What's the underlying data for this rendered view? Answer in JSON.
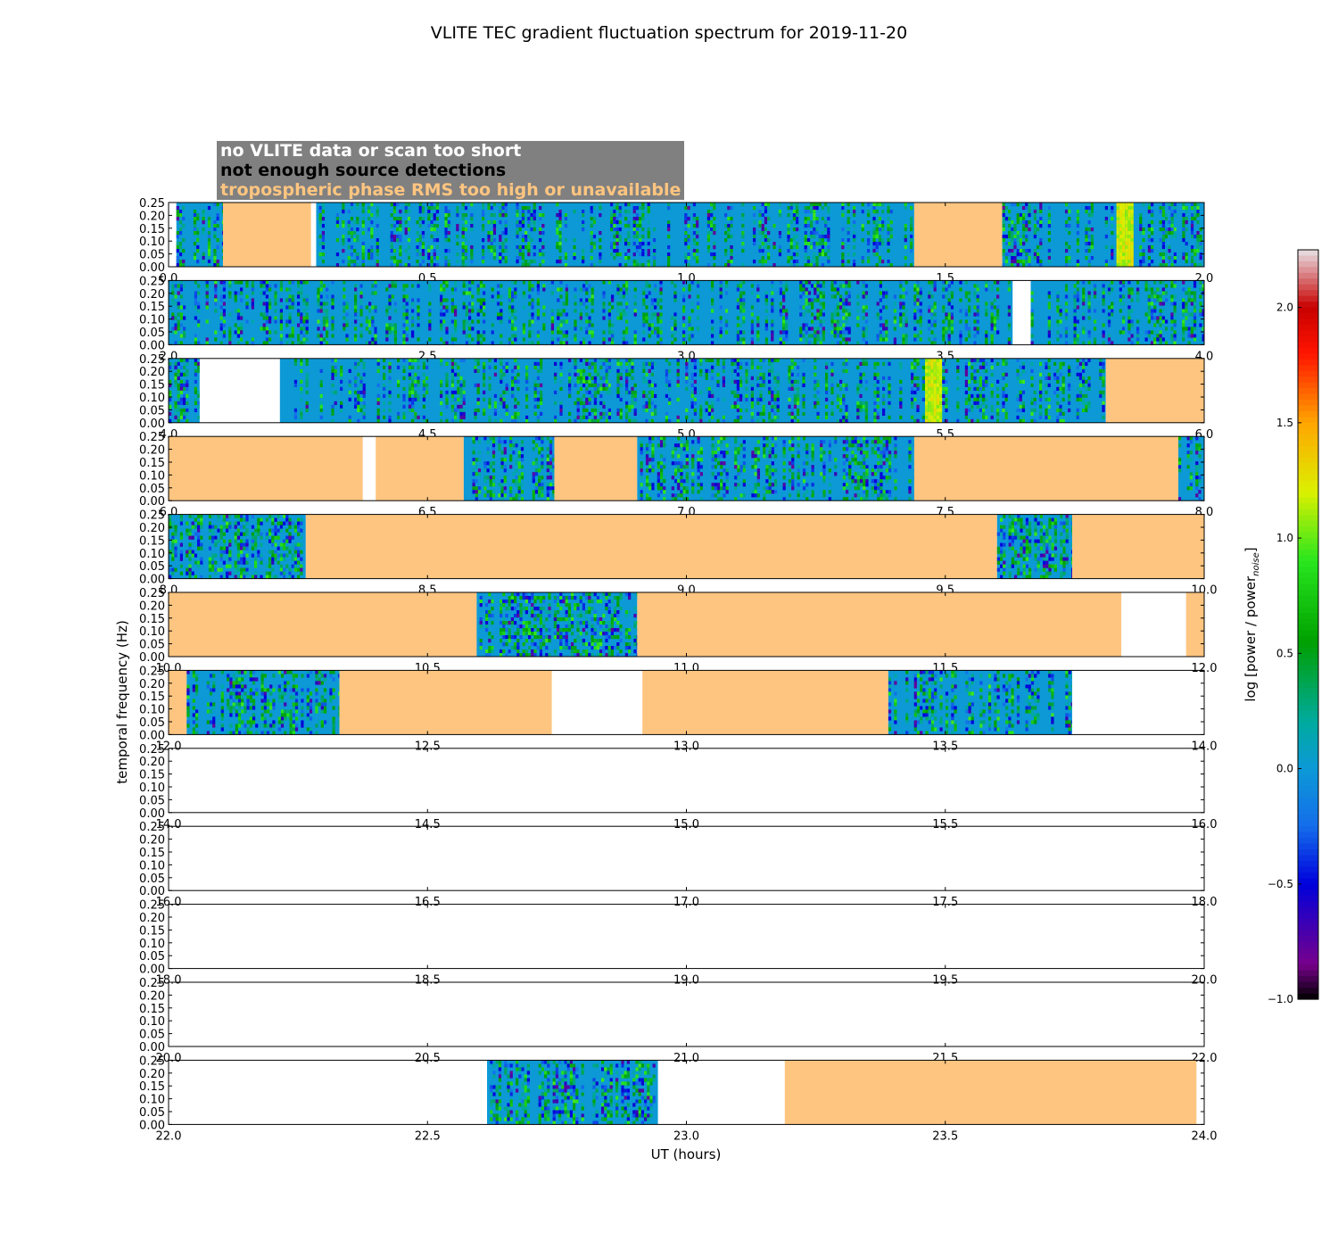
{
  "chart_data": {
    "type": "heatmap",
    "title": "VLITE TEC gradient fluctuation spectrum for 2019-11-20",
    "xlabel": "UT (hours)",
    "ylabel": "temporal frequency (Hz)",
    "colorbar_label": "log [power / power",
    "colorbar_label_sub": "noise",
    "colorbar_label_end": "]",
    "colorbar_range": [
      -1.0,
      2.25
    ],
    "colorbar_ticks": [
      "2.0",
      "1.5",
      "1.0",
      "0.5",
      "0.0",
      "−0.5",
      "−1.0"
    ],
    "colorbar_tick_values": [
      2.0,
      1.5,
      1.0,
      0.5,
      0.0,
      -0.5,
      -1.0
    ],
    "y_ticks": [
      "0.25",
      "0.20",
      "0.15",
      "0.10",
      "0.05",
      "0.00"
    ],
    "y_tick_values": [
      0.25,
      0.2,
      0.15,
      0.1,
      0.05,
      0.0
    ],
    "ylim": [
      0.0,
      0.25
    ],
    "legend": {
      "no_data": "no VLITE data or scan too short",
      "no_detections": "not enough source detections",
      "tropo": "tropospheric phase RMS too high or unavailable"
    },
    "category_colors": {
      "tropo": "#fec580",
      "no_data": "#ffffff",
      "base": "#0c99d6"
    },
    "panels": [
      {
        "xlim": [
          0.0,
          2.0
        ],
        "xticks": [
          "0.0",
          "0.5",
          "1.0",
          "1.5",
          "2.0"
        ],
        "segments": [
          {
            "start": 0.0,
            "end": 0.015,
            "kind": "blank"
          },
          {
            "start": 0.015,
            "end": 0.105,
            "kind": "spectrum",
            "intensity": 0.5
          },
          {
            "start": 0.105,
            "end": 0.275,
            "kind": "tropo"
          },
          {
            "start": 0.275,
            "end": 0.285,
            "kind": "blank"
          },
          {
            "start": 0.285,
            "end": 1.44,
            "kind": "spectrum",
            "intensity": 0.4
          },
          {
            "start": 1.44,
            "end": 1.61,
            "kind": "tropo"
          },
          {
            "start": 1.61,
            "end": 1.93,
            "kind": "spectrum",
            "intensity": 0.45,
            "hot": [
              1.83,
              1.86
            ]
          },
          {
            "start": 1.93,
            "end": 2.0,
            "kind": "spectrum",
            "intensity": 0.4
          }
        ]
      },
      {
        "xlim": [
          2.0,
          4.0
        ],
        "xticks": [
          "2.0",
          "2.5",
          "3.0",
          "3.5",
          "4.0"
        ],
        "segments": [
          {
            "start": 2.0,
            "end": 3.63,
            "kind": "spectrum",
            "intensity": 0.4
          },
          {
            "start": 3.63,
            "end": 3.665,
            "kind": "blank"
          },
          {
            "start": 3.665,
            "end": 4.0,
            "kind": "spectrum",
            "intensity": 0.45
          }
        ]
      },
      {
        "xlim": [
          4.0,
          6.0
        ],
        "xticks": [
          "4.0",
          "4.5",
          "5.0",
          "5.5",
          "6.0"
        ],
        "segments": [
          {
            "start": 4.0,
            "end": 4.06,
            "kind": "spectrum",
            "intensity": 0.5
          },
          {
            "start": 4.06,
            "end": 4.215,
            "kind": "blank"
          },
          {
            "start": 4.215,
            "end": 5.81,
            "kind": "spectrum",
            "intensity": 0.4,
            "hot": [
              5.46,
              5.49
            ]
          },
          {
            "start": 5.81,
            "end": 6.0,
            "kind": "tropo"
          }
        ]
      },
      {
        "xlim": [
          6.0,
          8.0
        ],
        "xticks": [
          "6.0",
          "6.5",
          "7.0",
          "7.5",
          "8.0"
        ],
        "segments": [
          {
            "start": 6.0,
            "end": 6.375,
            "kind": "tropo"
          },
          {
            "start": 6.375,
            "end": 6.4,
            "kind": "blank"
          },
          {
            "start": 6.4,
            "end": 6.57,
            "kind": "tropo"
          },
          {
            "start": 6.57,
            "end": 6.745,
            "kind": "spectrum",
            "intensity": 0.6
          },
          {
            "start": 6.745,
            "end": 6.905,
            "kind": "tropo"
          },
          {
            "start": 6.905,
            "end": 7.44,
            "kind": "spectrum",
            "intensity": 0.5
          },
          {
            "start": 7.44,
            "end": 7.95,
            "kind": "tropo"
          },
          {
            "start": 7.95,
            "end": 8.0,
            "kind": "spectrum",
            "intensity": 0.5
          }
        ]
      },
      {
        "xlim": [
          8.0,
          10.0
        ],
        "xticks": [
          "8.0",
          "8.5",
          "9.0",
          "9.5",
          "10.0"
        ],
        "segments": [
          {
            "start": 8.0,
            "end": 8.265,
            "kind": "spectrum",
            "intensity": 0.6
          },
          {
            "start": 8.265,
            "end": 9.6,
            "kind": "tropo"
          },
          {
            "start": 9.6,
            "end": 9.745,
            "kind": "spectrum",
            "intensity": 0.65
          },
          {
            "start": 9.745,
            "end": 10.0,
            "kind": "tropo"
          }
        ]
      },
      {
        "xlim": [
          10.0,
          12.0
        ],
        "xticks": [
          "10.0",
          "10.5",
          "11.0",
          "11.5",
          "12.0"
        ],
        "segments": [
          {
            "start": 10.0,
            "end": 10.595,
            "kind": "tropo"
          },
          {
            "start": 10.595,
            "end": 10.905,
            "kind": "spectrum",
            "intensity": 0.7
          },
          {
            "start": 10.905,
            "end": 11.84,
            "kind": "tropo"
          },
          {
            "start": 11.84,
            "end": 11.965,
            "kind": "blank"
          },
          {
            "start": 11.965,
            "end": 12.0,
            "kind": "tropo"
          }
        ]
      },
      {
        "xlim": [
          12.0,
          14.0
        ],
        "xticks": [
          "12.0",
          "12.5",
          "13.0",
          "13.5",
          "14.0"
        ],
        "segments": [
          {
            "start": 12.0,
            "end": 12.035,
            "kind": "tropo"
          },
          {
            "start": 12.035,
            "end": 12.33,
            "kind": "spectrum",
            "intensity": 0.5
          },
          {
            "start": 12.33,
            "end": 12.74,
            "kind": "tropo"
          },
          {
            "start": 12.74,
            "end": 12.915,
            "kind": "blank"
          },
          {
            "start": 12.915,
            "end": 13.39,
            "kind": "tropo"
          },
          {
            "start": 13.39,
            "end": 13.745,
            "kind": "spectrum",
            "intensity": 0.4
          },
          {
            "start": 13.745,
            "end": 14.0,
            "kind": "blank"
          }
        ]
      },
      {
        "xlim": [
          14.0,
          16.0
        ],
        "xticks": [
          "14.0",
          "14.5",
          "15.0",
          "15.5",
          "16.0"
        ],
        "segments": []
      },
      {
        "xlim": [
          16.0,
          18.0
        ],
        "xticks": [
          "16.0",
          "16.5",
          "17.0",
          "17.5",
          "18.0"
        ],
        "segments": []
      },
      {
        "xlim": [
          18.0,
          20.0
        ],
        "xticks": [
          "18.0",
          "18.5",
          "19.0",
          "19.5",
          "20.0"
        ],
        "segments": []
      },
      {
        "xlim": [
          20.0,
          22.0
        ],
        "xticks": [
          "20.0",
          "20.5",
          "21.0",
          "21.5",
          "22.0"
        ],
        "segments": []
      },
      {
        "xlim": [
          22.0,
          24.0
        ],
        "xticks": [
          "22.0",
          "22.5",
          "23.0",
          "23.5",
          "24.0"
        ],
        "segments": [
          {
            "start": 22.0,
            "end": 22.615,
            "kind": "blank"
          },
          {
            "start": 22.615,
            "end": 22.945,
            "kind": "spectrum",
            "intensity": 0.6
          },
          {
            "start": 22.945,
            "end": 23.19,
            "kind": "blank"
          },
          {
            "start": 23.19,
            "end": 23.985,
            "kind": "tropo"
          },
          {
            "start": 23.985,
            "end": 24.0,
            "kind": "blank"
          }
        ]
      }
    ]
  }
}
